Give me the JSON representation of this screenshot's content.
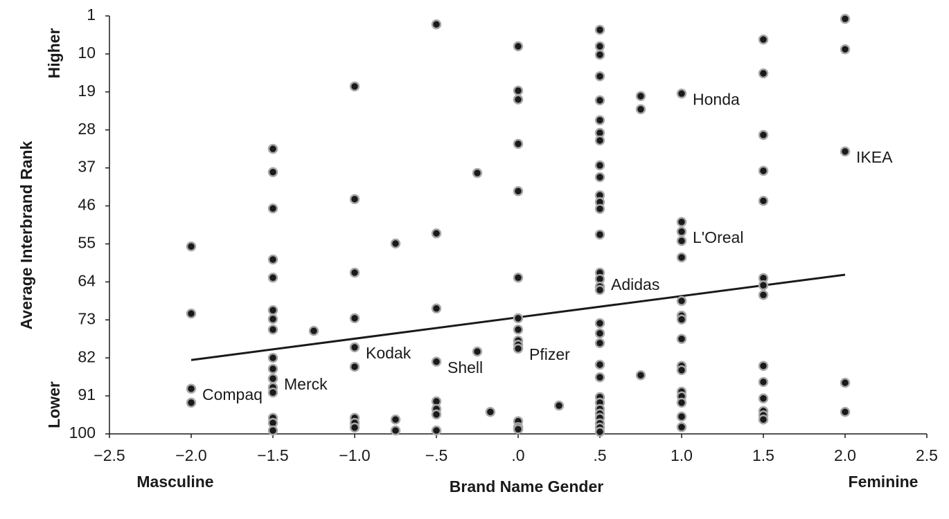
{
  "chart_data": {
    "type": "scatter",
    "x_label": "Brand Name Gender",
    "y_label": "Average Interbrand Rank",
    "x_annotations": [
      "Masculine",
      "Feminine"
    ],
    "y_annotations": [
      "Higher",
      "Lower"
    ],
    "xlim": [
      -2.5,
      2.5
    ],
    "ylim": [
      1,
      100
    ],
    "y_inverted": true,
    "xticks": [
      {
        "value": -2.5,
        "label": "−2.5"
      },
      {
        "value": -2.0,
        "label": "−2.0"
      },
      {
        "value": -1.5,
        "label": "−1.5"
      },
      {
        "value": -1.0,
        "label": "−1.0"
      },
      {
        "value": -0.5,
        "label": "−.5"
      },
      {
        "value": 0,
        "label": ".0"
      },
      {
        "value": 0.5,
        "label": ".5"
      },
      {
        "value": 1.0,
        "label": "1.0"
      },
      {
        "value": 1.5,
        "label": "1.5"
      },
      {
        "value": 2.0,
        "label": "2.0"
      },
      {
        "value": 2.5,
        "label": "2.5"
      }
    ],
    "yticks": [
      1,
      10,
      19,
      28,
      37,
      46,
      55,
      64,
      73,
      82,
      91,
      100
    ],
    "grid": false,
    "color": "#1a1a1a",
    "edge_color": "#a8a8a8",
    "x": [
      -2,
      -2,
      -2,
      -2,
      -1.5,
      -1.5,
      -1.5,
      -1.5,
      -1.5,
      -1.5,
      -1.5,
      -1.5,
      -1.5,
      -1.5,
      -1.5,
      -1.5,
      -1.5,
      -1.5,
      -1.5,
      -1.5,
      -1.25,
      -1,
      -1,
      -1,
      -1,
      -1,
      -1,
      -1,
      -1,
      -1,
      -0.75,
      -0.75,
      -0.75,
      -0.5,
      -0.5,
      -0.5,
      -0.5,
      -0.5,
      -0.5,
      -0.5,
      -0.5,
      -0.25,
      -0.25,
      -0.17,
      0,
      0,
      0,
      0,
      0,
      0,
      0,
      0,
      0,
      0,
      0,
      0,
      0,
      0,
      0.25,
      0.5,
      0.5,
      0.5,
      0.5,
      0.5,
      0.5,
      0.5,
      0.5,
      0.5,
      0.5,
      0.5,
      0.5,
      0.5,
      0.5,
      0.5,
      0.5,
      0.5,
      0.5,
      0.5,
      0.5,
      0.5,
      0.5,
      0.5,
      0.5,
      0.5,
      0.5,
      0.5,
      0.5,
      0.5,
      0.5,
      0.5,
      0.75,
      0.75,
      0.75,
      1,
      1,
      1,
      1,
      1,
      1,
      1,
      1,
      1,
      1,
      1,
      1,
      1,
      1,
      1,
      1,
      1.5,
      1.5,
      1.5,
      1.5,
      1.5,
      1.5,
      1.5,
      1.5,
      1.5,
      1.5,
      1.5,
      1.5,
      1.5,
      1.5,
      2,
      2,
      2,
      2,
      2
    ],
    "y": [
      55.6,
      71.5,
      89.3,
      92.6,
      32.5,
      38.0,
      46.6,
      58.7,
      63.0,
      70.7,
      72.8,
      75.3,
      82.0,
      84.6,
      86.9,
      89.0,
      90.2,
      96.2,
      97.4,
      99.2,
      75.6,
      17.7,
      44.4,
      61.8,
      72.6,
      79.5,
      84.1,
      96.2,
      97.4,
      98.5,
      54.9,
      96.6,
      99.2,
      3.0,
      52.5,
      70.3,
      82.9,
      92.3,
      94.1,
      95.4,
      99.2,
      38.2,
      80.5,
      94.8,
      8.2,
      18.7,
      20.8,
      31.3,
      42.5,
      63.0,
      72.6,
      75.3,
      77.9,
      78.9,
      79.8,
      97.0,
      98.4,
      98.9,
      93.3,
      4.3,
      8.2,
      10.2,
      15.3,
      21.0,
      25.7,
      28.7,
      30.5,
      36.4,
      39.2,
      43.5,
      45.1,
      46.7,
      52.8,
      61.8,
      63.3,
      65.1,
      65.9,
      73.8,
      76.2,
      78.5,
      83.6,
      86.6,
      91.3,
      92.6,
      94.1,
      95.2,
      96.2,
      97.5,
      98.5,
      99.5,
      20.0,
      23.1,
      86.1,
      19.4,
      49.8,
      52.1,
      54.3,
      58.2,
      68.5,
      72.0,
      72.9,
      77.5,
      83.9,
      84.9,
      90.0,
      91.1,
      92.6,
      95.9,
      98.4,
      6.6,
      14.6,
      29.2,
      37.7,
      44.8,
      63.1,
      64.8,
      67.1,
      83.9,
      87.7,
      91.6,
      94.6,
      95.6,
      96.6,
      1.7,
      8.9,
      33.1,
      87.9,
      94.8
    ],
    "labels": [
      null,
      null,
      "Compaq",
      null,
      null,
      null,
      null,
      null,
      null,
      null,
      null,
      null,
      null,
      null,
      "Merck",
      null,
      null,
      null,
      null,
      null,
      null,
      null,
      null,
      null,
      null,
      "Kodak",
      null,
      null,
      null,
      null,
      null,
      null,
      null,
      null,
      null,
      null,
      "Shell",
      null,
      null,
      null,
      null,
      null,
      null,
      null,
      null,
      null,
      null,
      null,
      null,
      null,
      null,
      null,
      null,
      null,
      "Pfizer",
      null,
      null,
      null,
      null,
      null,
      null,
      null,
      null,
      null,
      null,
      null,
      null,
      null,
      null,
      null,
      null,
      null,
      null,
      null,
      "Adidas",
      null,
      null,
      null,
      null,
      null,
      null,
      null,
      null,
      null,
      null,
      null,
      null,
      null,
      null,
      null,
      null,
      null,
      null,
      "Honda",
      null,
      "L'Oreal",
      null,
      null,
      null,
      null,
      null,
      null,
      null,
      null,
      null,
      null,
      null,
      null,
      null,
      null,
      null,
      null,
      null,
      null,
      null,
      null,
      null,
      null,
      null,
      null,
      null,
      null,
      null,
      null,
      null,
      "IKEA",
      null,
      null
    ],
    "trendline": {
      "x": [
        -2,
        2
      ],
      "y": [
        82.5,
        62.3
      ]
    }
  }
}
